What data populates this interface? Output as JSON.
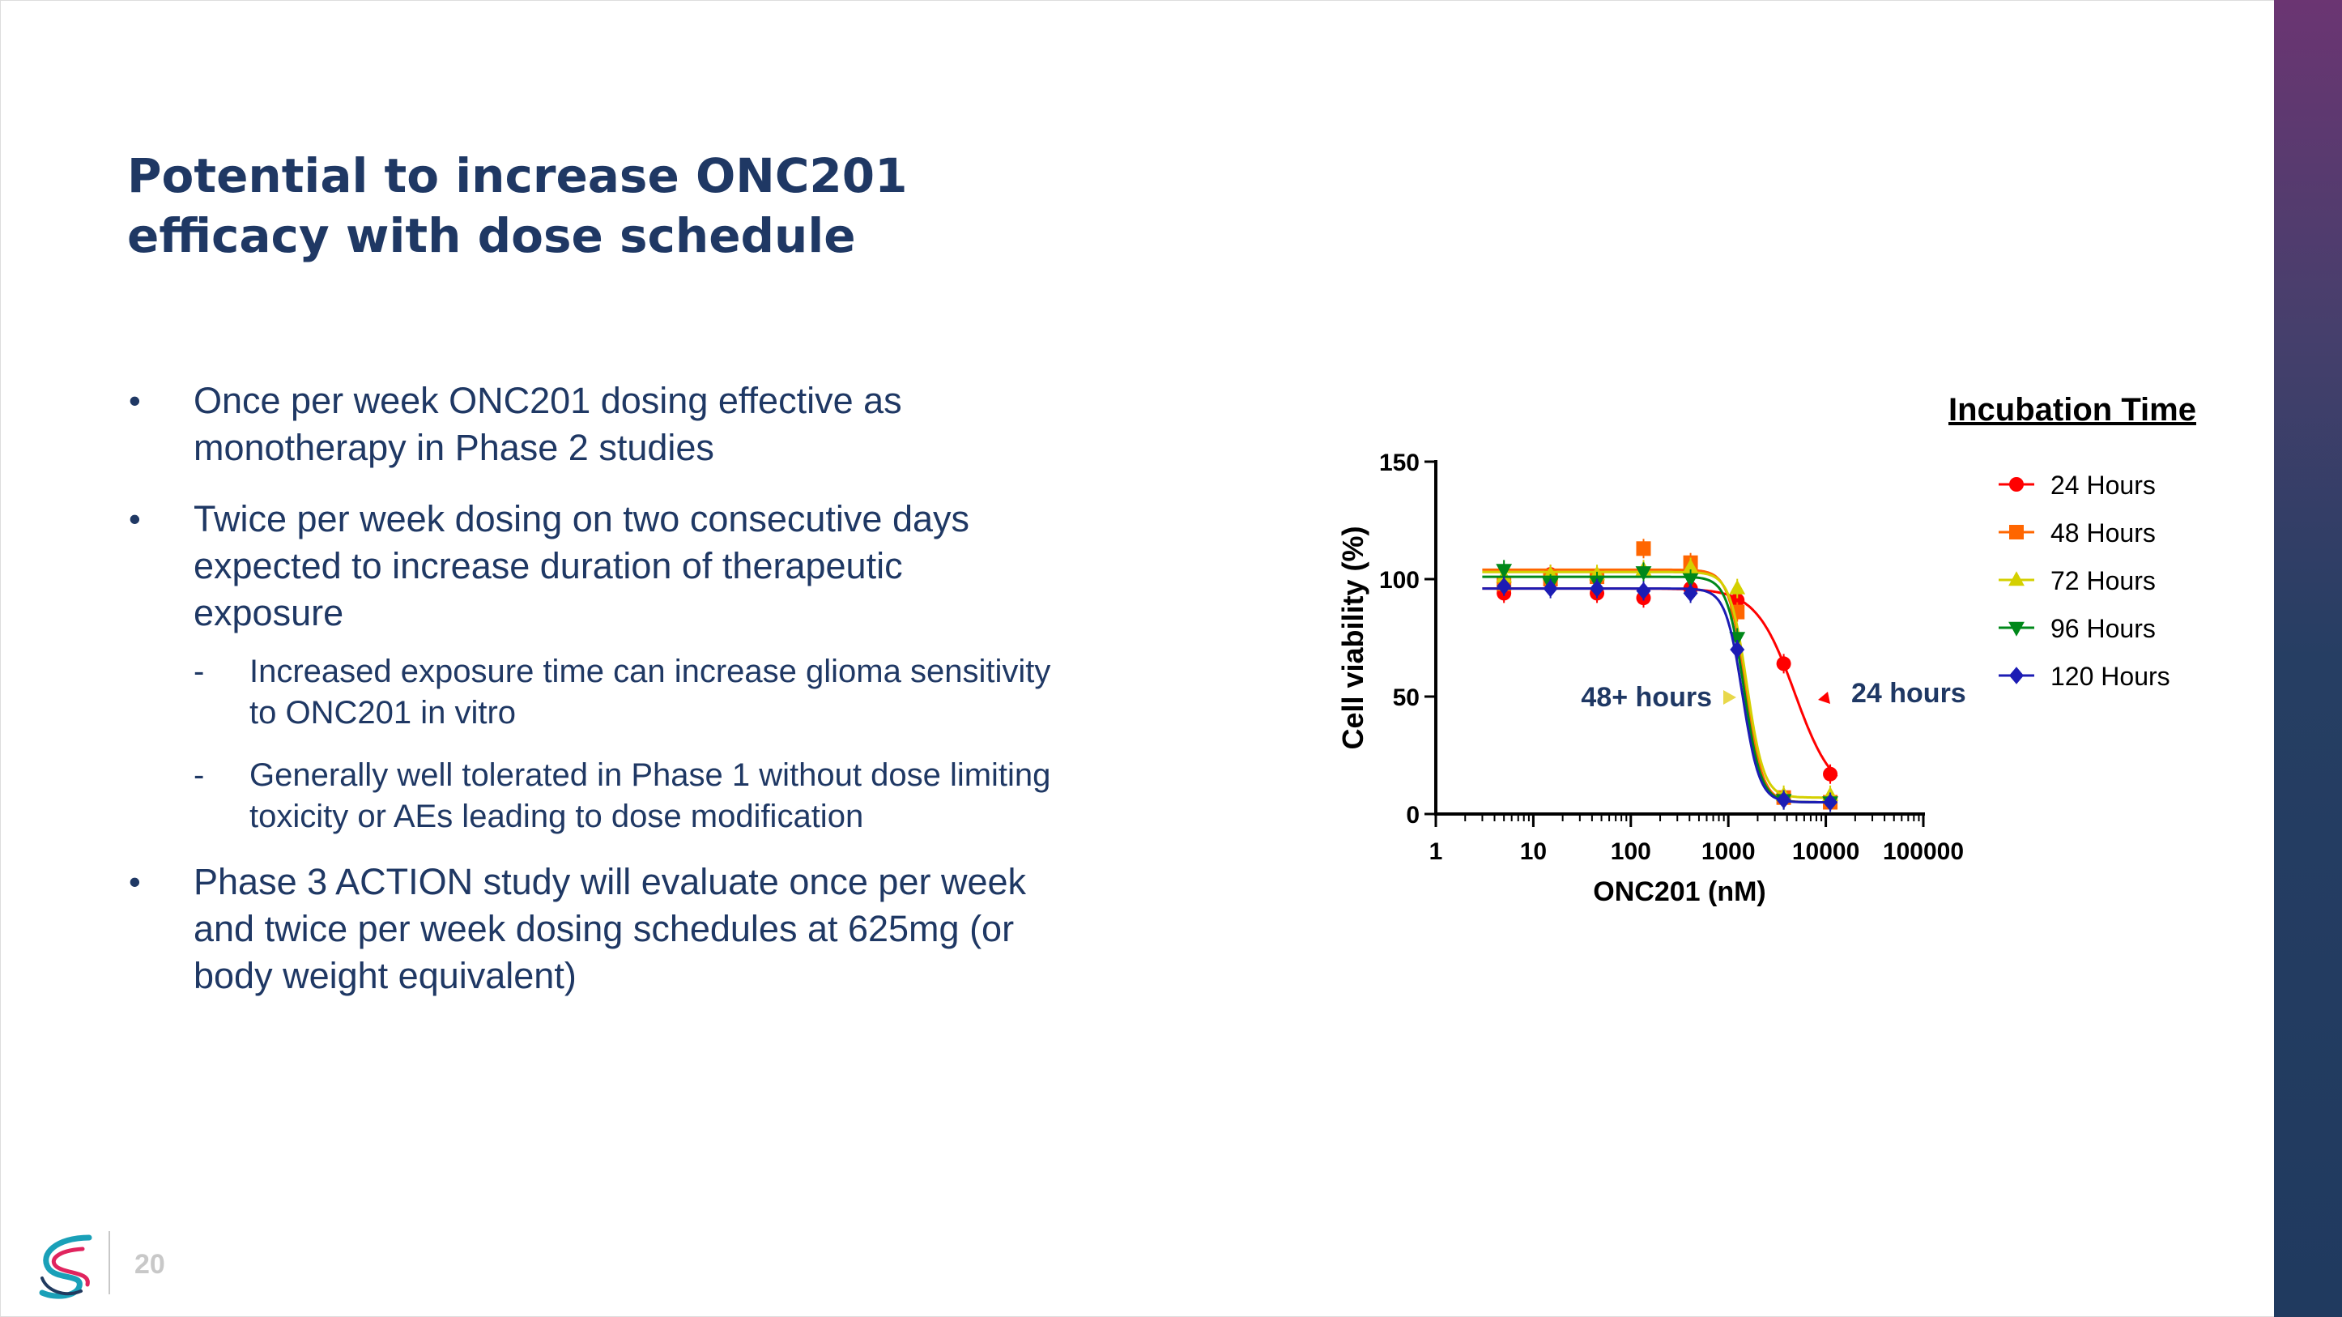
{
  "slide": {
    "title_lines": [
      "Potential to increase ONC201",
      "efficacy with dose schedule"
    ],
    "page_number": "20"
  },
  "bullets": {
    "b1_lines": [
      "Once per week ONC201 dosing effective as",
      "monotherapy in Phase 2 studies"
    ],
    "b2_lines": [
      "Twice per week dosing on two consecutive days",
      "expected to increase duration of therapeutic",
      "exposure"
    ],
    "sub1_lines": [
      "Increased exposure time can increase glioma sensitivity",
      "to ONC201 in vitro"
    ],
    "sub2_lines": [
      "Generally well tolerated in Phase 1 without dose limiting",
      "toxicity or AEs leading to dose modification"
    ],
    "b3_lines": [
      "Phase 3 ACTION study will evaluate once per week",
      "and twice per week dosing schedules at 625mg (or",
      "body weight equivalent)"
    ],
    "bullet_glyph": "•",
    "dash_glyph": "-"
  },
  "chart_data": {
    "type": "scatter",
    "xlabel": "ONC201 (nM)",
    "ylabel": "Cell viability (%)",
    "x_scale": "log",
    "xlim": [
      1,
      100000
    ],
    "ylim": [
      0,
      150
    ],
    "x_ticks": [
      "1",
      "10",
      "100",
      "1000",
      "10000",
      "100000"
    ],
    "y_ticks": [
      "0",
      "50",
      "100",
      "150"
    ],
    "legend_title": "Incubation Time",
    "legend_position": "right",
    "annotations": [
      "48+ hours",
      "24 hours"
    ],
    "series": [
      {
        "name": "24 Hours",
        "color": "#ff0000",
        "marker": "circle",
        "x": [
          5,
          15,
          45,
          135,
          410,
          1235,
          3700,
          11100
        ],
        "y": [
          94,
          102,
          94,
          92,
          96,
          91,
          64,
          17
        ],
        "curve": {
          "top": 96,
          "bottom": 7,
          "ec50": 4800,
          "hill": 2.2
        }
      },
      {
        "name": "48 Hours",
        "color": "#ff6600",
        "marker": "square",
        "x": [
          5,
          15,
          45,
          135,
          410,
          1235,
          3700,
          11100
        ],
        "y": [
          98,
          100,
          101,
          113,
          107,
          86,
          7,
          5
        ],
        "curve": {
          "top": 104,
          "bottom": 5,
          "ec50": 1500,
          "hill": 5
        }
      },
      {
        "name": "72 Hours",
        "color": "#d4d000",
        "marker": "triangle-up",
        "x": [
          5,
          15,
          45,
          135,
          410,
          1235,
          3700,
          11100
        ],
        "y": [
          101,
          102,
          102,
          104,
          105,
          96,
          8,
          8
        ],
        "curve": {
          "top": 103,
          "bottom": 7,
          "ec50": 1550,
          "hill": 5
        }
      },
      {
        "name": "96 Hours",
        "color": "#00881a",
        "marker": "triangle-down",
        "x": [
          5,
          15,
          45,
          135,
          410,
          1235,
          3700,
          11100
        ],
        "y": [
          104,
          98,
          99,
          103,
          100,
          75,
          6,
          5
        ],
        "curve": {
          "top": 101,
          "bottom": 5,
          "ec50": 1450,
          "hill": 5
        }
      },
      {
        "name": "120 Hours",
        "color": "#1c1cb4",
        "marker": "diamond",
        "x": [
          5,
          15,
          45,
          135,
          410,
          1235,
          3700,
          11100
        ],
        "y": [
          97,
          96,
          96,
          95,
          94,
          70,
          6,
          5
        ],
        "curve": {
          "top": 96,
          "bottom": 5,
          "ec50": 1400,
          "hill": 5
        }
      }
    ]
  }
}
